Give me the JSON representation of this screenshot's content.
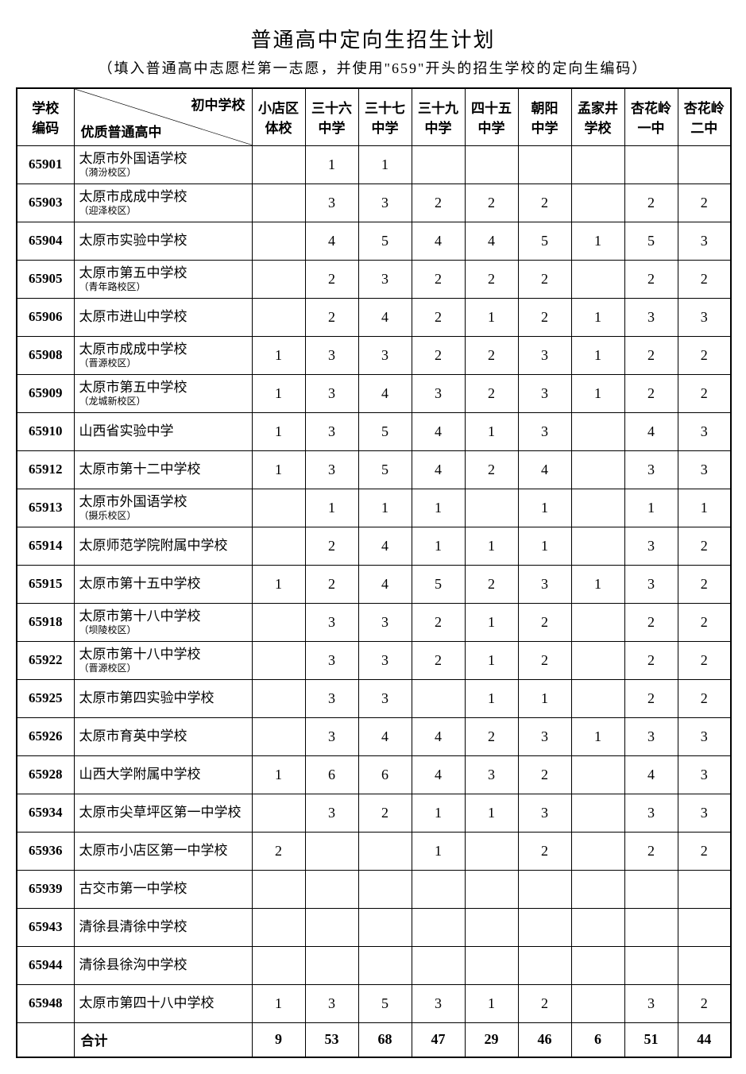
{
  "title": "普通高中定向生招生计划",
  "subtitle": "（填入普通高中志愿栏第一志愿，并使用\"659\"开头的招生学校的定向生编码）",
  "header": {
    "code": "学校\n编码",
    "diag_top": "初中学校",
    "diag_bottom": "优质普通高中",
    "columns": [
      "小店区\n体校",
      "三十六\n中学",
      "三十七\n中学",
      "三十九\n中学",
      "四十五\n中学",
      "朝阳\n中学",
      "孟家井\n学校",
      "杏花岭\n一中",
      "杏花岭\n二中"
    ]
  },
  "rows": [
    {
      "code": "65901",
      "name": "太原市外国语学校",
      "sub": "（漪汾校区）",
      "vals": [
        "",
        "1",
        "1",
        "",
        "",
        "",
        "",
        "",
        ""
      ]
    },
    {
      "code": "65903",
      "name": "太原市成成中学校",
      "sub": "（迎泽校区）",
      "vals": [
        "",
        "3",
        "3",
        "2",
        "2",
        "2",
        "",
        "2",
        "2"
      ]
    },
    {
      "code": "65904",
      "name": "太原市实验中学校",
      "sub": "",
      "vals": [
        "",
        "4",
        "5",
        "4",
        "4",
        "5",
        "1",
        "5",
        "3"
      ]
    },
    {
      "code": "65905",
      "name": "太原市第五中学校",
      "sub": "（青年路校区）",
      "vals": [
        "",
        "2",
        "3",
        "2",
        "2",
        "2",
        "",
        "2",
        "2"
      ]
    },
    {
      "code": "65906",
      "name": "太原市进山中学校",
      "sub": "",
      "vals": [
        "",
        "2",
        "4",
        "2",
        "1",
        "2",
        "1",
        "3",
        "3"
      ]
    },
    {
      "code": "65908",
      "name": "太原市成成中学校",
      "sub": "（晋源校区）",
      "vals": [
        "1",
        "3",
        "3",
        "2",
        "2",
        "3",
        "1",
        "2",
        "2"
      ]
    },
    {
      "code": "65909",
      "name": "太原市第五中学校",
      "sub": "（龙城新校区）",
      "vals": [
        "1",
        "3",
        "4",
        "3",
        "2",
        "3",
        "1",
        "2",
        "2"
      ]
    },
    {
      "code": "65910",
      "name": "山西省实验中学",
      "sub": "",
      "vals": [
        "1",
        "3",
        "5",
        "4",
        "1",
        "3",
        "",
        "4",
        "3"
      ]
    },
    {
      "code": "65912",
      "name": "太原市第十二中学校",
      "sub": "",
      "vals": [
        "1",
        "3",
        "5",
        "4",
        "2",
        "4",
        "",
        "3",
        "3"
      ]
    },
    {
      "code": "65913",
      "name": "太原市外国语学校",
      "sub": "（摄乐校区）",
      "vals": [
        "",
        "1",
        "1",
        "1",
        "",
        "1",
        "",
        "1",
        "1"
      ]
    },
    {
      "code": "65914",
      "name": "太原师范学院附属中学校",
      "sub": "",
      "vals": [
        "",
        "2",
        "4",
        "1",
        "1",
        "1",
        "",
        "3",
        "2"
      ]
    },
    {
      "code": "65915",
      "name": "太原市第十五中学校",
      "sub": "",
      "vals": [
        "1",
        "2",
        "4",
        "5",
        "2",
        "3",
        "1",
        "3",
        "2"
      ]
    },
    {
      "code": "65918",
      "name": "太原市第十八中学校",
      "sub": "（坝陵校区）",
      "vals": [
        "",
        "3",
        "3",
        "2",
        "1",
        "2",
        "",
        "2",
        "2"
      ]
    },
    {
      "code": "65922",
      "name": "太原市第十八中学校",
      "sub": "（晋源校区）",
      "vals": [
        "",
        "3",
        "3",
        "2",
        "1",
        "2",
        "",
        "2",
        "2"
      ]
    },
    {
      "code": "65925",
      "name": "太原市第四实验中学校",
      "sub": "",
      "vals": [
        "",
        "3",
        "3",
        "",
        "1",
        "1",
        "",
        "2",
        "2"
      ]
    },
    {
      "code": "65926",
      "name": "太原市育英中学校",
      "sub": "",
      "vals": [
        "",
        "3",
        "4",
        "4",
        "2",
        "3",
        "1",
        "3",
        "3"
      ]
    },
    {
      "code": "65928",
      "name": "山西大学附属中学校",
      "sub": "",
      "vals": [
        "1",
        "6",
        "6",
        "4",
        "3",
        "2",
        "",
        "4",
        "3"
      ]
    },
    {
      "code": "65934",
      "name": "太原市尖草坪区第一中学校",
      "sub": "",
      "vals": [
        "",
        "3",
        "2",
        "1",
        "1",
        "3",
        "",
        "3",
        "3"
      ]
    },
    {
      "code": "65936",
      "name": "太原市小店区第一中学校",
      "sub": "",
      "vals": [
        "2",
        "",
        "",
        "1",
        "",
        "2",
        "",
        "2",
        "2"
      ]
    },
    {
      "code": "65939",
      "name": "古交市第一中学校",
      "sub": "",
      "vals": [
        "",
        "",
        "",
        "",
        "",
        "",
        "",
        "",
        ""
      ]
    },
    {
      "code": "65943",
      "name": "清徐县清徐中学校",
      "sub": "",
      "vals": [
        "",
        "",
        "",
        "",
        "",
        "",
        "",
        "",
        ""
      ]
    },
    {
      "code": "65944",
      "name": "清徐县徐沟中学校",
      "sub": "",
      "vals": [
        "",
        "",
        "",
        "",
        "",
        "",
        "",
        "",
        ""
      ]
    },
    {
      "code": "65948",
      "name": "太原市第四十八中学校",
      "sub": "",
      "vals": [
        "1",
        "3",
        "5",
        "3",
        "1",
        "2",
        "",
        "3",
        "2"
      ]
    }
  ],
  "total": {
    "label": "合计",
    "vals": [
      "9",
      "53",
      "68",
      "47",
      "29",
      "46",
      "6",
      "51",
      "44"
    ]
  }
}
